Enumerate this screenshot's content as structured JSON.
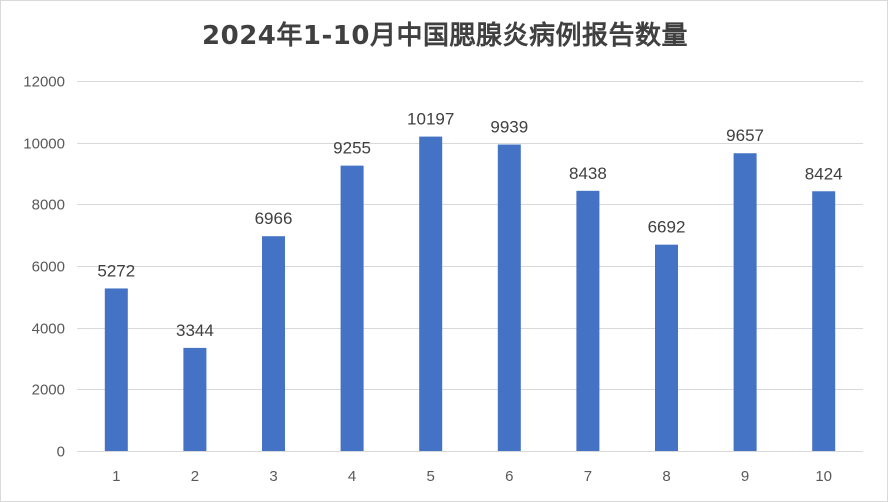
{
  "chart_data": {
    "type": "bar",
    "title": "2024年1-10月中国腮腺炎病例报告数量",
    "categories": [
      "1",
      "2",
      "3",
      "4",
      "5",
      "6",
      "7",
      "8",
      "9",
      "10"
    ],
    "values": [
      5272,
      3344,
      6966,
      9255,
      10197,
      9939,
      8438,
      6692,
      9657,
      8424
    ],
    "data_labels": [
      "5272",
      "3344",
      "6966",
      "9255",
      "10197",
      "9939",
      "8438",
      "6692",
      "9657",
      "8424"
    ],
    "y_ticks": [
      0,
      2000,
      4000,
      6000,
      8000,
      10000,
      12000
    ],
    "y_tick_labels": [
      "0",
      "2000",
      "4000",
      "6000",
      "8000",
      "10000",
      "12000"
    ],
    "ylim": [
      0,
      12000
    ],
    "grid": true,
    "legend": "none",
    "bar_color": "#4472c4",
    "grid_color": "#d9d9d9"
  }
}
